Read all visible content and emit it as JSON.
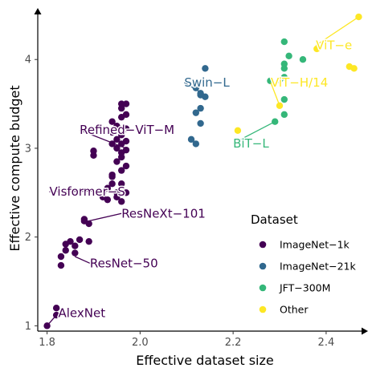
{
  "chart_data": {
    "type": "scatter",
    "title": "",
    "xlabel": "Effective dataset size",
    "ylabel": "Effective compute budget",
    "xlim": [
      1.78,
      2.49
    ],
    "ylim": [
      0.94,
      4.58
    ],
    "xticks": [
      1.8,
      2.0,
      2.2,
      2.4
    ],
    "xtick_labels": [
      "1.8",
      "2.0",
      "2.2",
      "2.4"
    ],
    "yticks": [
      1,
      2,
      3,
      4
    ],
    "ytick_labels": [
      "1",
      "2",
      "3",
      "4"
    ],
    "grid": false,
    "legend": {
      "title": "Dataset",
      "placement": "bottom-right",
      "entries": [
        "ImageNet−1k",
        "ImageNet−21k",
        "JFT−300M",
        "Other"
      ],
      "glyph": "a"
    },
    "series": [
      {
        "name": "ImageNet−1k",
        "color": "#440154",
        "points": [
          [
            1.8,
            1.0
          ],
          [
            1.82,
            1.12
          ],
          [
            1.82,
            1.2
          ],
          [
            1.83,
            1.68
          ],
          [
            1.83,
            1.78
          ],
          [
            1.84,
            1.85
          ],
          [
            1.84,
            1.92
          ],
          [
            1.85,
            1.95
          ],
          [
            1.86,
            1.82
          ],
          [
            1.86,
            1.9
          ],
          [
            1.87,
            1.97
          ],
          [
            1.88,
            2.2
          ],
          [
            1.88,
            2.18
          ],
          [
            1.89,
            2.15
          ],
          [
            1.89,
            1.95
          ],
          [
            1.9,
            2.92
          ],
          [
            1.9,
            2.97
          ],
          [
            1.92,
            2.45
          ],
          [
            1.92,
            2.5
          ],
          [
            1.93,
            2.42
          ],
          [
            1.93,
            2.55
          ],
          [
            1.94,
            2.6
          ],
          [
            1.94,
            2.68
          ],
          [
            1.94,
            2.7
          ],
          [
            1.94,
            3.05
          ],
          [
            1.94,
            3.18
          ],
          [
            1.94,
            3.3
          ],
          [
            1.95,
            2.45
          ],
          [
            1.95,
            2.5
          ],
          [
            1.95,
            2.85
          ],
          [
            1.95,
            3.0
          ],
          [
            1.95,
            3.1
          ],
          [
            1.95,
            3.25
          ],
          [
            1.96,
            2.4
          ],
          [
            1.96,
            2.6
          ],
          [
            1.96,
            2.75
          ],
          [
            1.96,
            2.9
          ],
          [
            1.96,
            2.95
          ],
          [
            1.96,
            3.05
          ],
          [
            1.96,
            3.15
          ],
          [
            1.96,
            3.35
          ],
          [
            1.96,
            3.45
          ],
          [
            1.96,
            3.5
          ],
          [
            1.97,
            2.5
          ],
          [
            1.97,
            2.8
          ],
          [
            1.97,
            2.98
          ],
          [
            1.97,
            3.08
          ],
          [
            1.97,
            3.22
          ],
          [
            1.97,
            3.38
          ],
          [
            1.97,
            3.5
          ]
        ]
      },
      {
        "name": "ImageNet−21k",
        "color": "#31688e",
        "points": [
          [
            2.11,
            3.1
          ],
          [
            2.12,
            3.05
          ],
          [
            2.12,
            3.4
          ],
          [
            2.12,
            3.68
          ],
          [
            2.13,
            3.28
          ],
          [
            2.13,
            3.45
          ],
          [
            2.13,
            3.6
          ],
          [
            2.13,
            3.62
          ],
          [
            2.14,
            3.58
          ],
          [
            2.14,
            3.9
          ]
        ]
      },
      {
        "name": "JFT−300M",
        "color": "#35b779",
        "points": [
          [
            2.28,
            3.76
          ],
          [
            2.29,
            3.3
          ],
          [
            2.3,
            3.77
          ],
          [
            2.31,
            3.38
          ],
          [
            2.31,
            3.55
          ],
          [
            2.31,
            3.8
          ],
          [
            2.31,
            3.9
          ],
          [
            2.31,
            3.95
          ],
          [
            2.31,
            4.2
          ],
          [
            2.32,
            4.04
          ],
          [
            2.35,
            4.0
          ]
        ]
      },
      {
        "name": "Other",
        "color": "#fde725",
        "points": [
          [
            2.21,
            3.2
          ],
          [
            2.3,
            3.48
          ],
          [
            2.38,
            4.12
          ],
          [
            2.45,
            3.92
          ],
          [
            2.46,
            3.9
          ],
          [
            2.47,
            4.48
          ]
        ]
      }
    ],
    "annotations": [
      {
        "text": "AlexNet",
        "series": 0,
        "at": [
          1.8,
          1.0
        ],
        "label": [
          1.824,
          1.145
        ]
      },
      {
        "text": "ResNet−50",
        "series": 0,
        "at": [
          1.86,
          1.78
        ],
        "label": [
          1.892,
          1.705
        ]
      },
      {
        "text": "ResNeXt−101",
        "series": 0,
        "at": [
          1.88,
          2.17
        ],
        "label": [
          1.96,
          2.265
        ]
      },
      {
        "text": "Visformer−S",
        "series": 0,
        "at": [
          1.94,
          2.52
        ],
        "label": [
          1.805,
          2.51
        ]
      },
      {
        "text": "Refined−ViT−M",
        "series": 0,
        "at": [
          1.97,
          3.0
        ],
        "label": [
          1.87,
          3.205
        ]
      },
      {
        "text": "Swin−L",
        "series": 1,
        "at": [
          2.14,
          3.6
        ],
        "label": [
          2.095,
          3.74
        ]
      },
      {
        "text": "BiT−L",
        "series": 2,
        "at": [
          2.29,
          3.3
        ],
        "label": [
          2.2,
          3.055
        ]
      },
      {
        "text": "ViT−H/14",
        "series": 3,
        "at": [
          2.3,
          3.48
        ],
        "label": [
          2.281,
          3.74
        ]
      },
      {
        "text": "ViT−e",
        "series": 3,
        "at": [
          2.47,
          4.48
        ],
        "label": [
          2.378,
          4.16
        ]
      }
    ]
  }
}
